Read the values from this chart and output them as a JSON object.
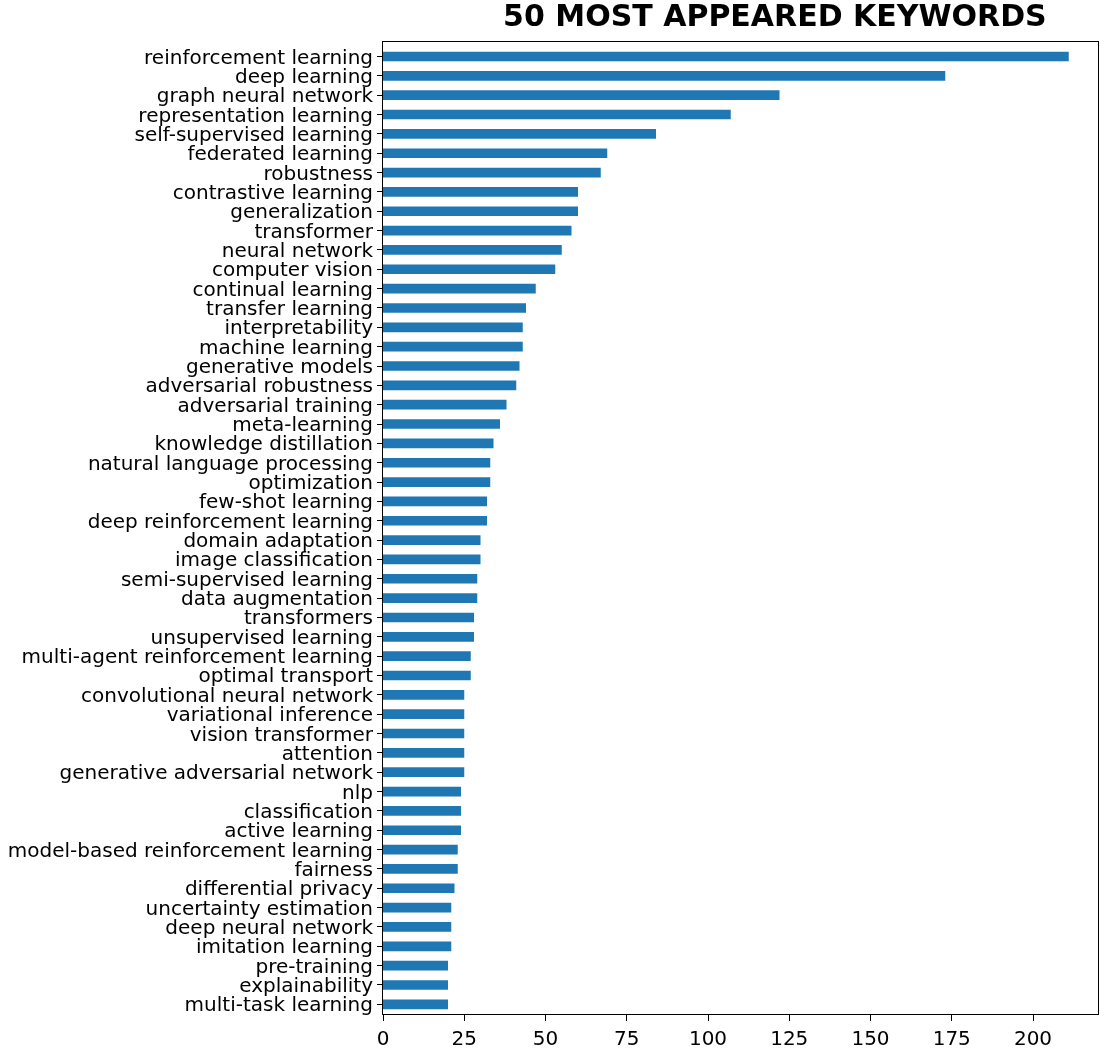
{
  "chart_data": {
    "type": "bar",
    "orientation": "horizontal",
    "title": "50 MOST APPEARED KEYWORDS",
    "color": "#1f77b4",
    "categories": [
      "reinforcement learning",
      "deep learning",
      "graph neural network",
      "representation learning",
      "self-supervised learning",
      "federated learning",
      "robustness",
      "contrastive learning",
      "generalization",
      "transformer",
      "neural network",
      "computer vision",
      "continual learning",
      "transfer learning",
      "interpretability",
      "machine learning",
      "generative models",
      "adversarial robustness",
      "adversarial training",
      "meta-learning",
      "knowledge distillation",
      "natural language processing",
      "optimization",
      "few-shot learning",
      "deep reinforcement learning",
      "domain adaptation",
      "image classification",
      "semi-supervised learning",
      "data augmentation",
      "transformers",
      "unsupervised learning",
      "multi-agent reinforcement learning",
      "optimal transport",
      "convolutional neural network",
      "variational inference",
      "vision transformer",
      "attention",
      "generative adversarial network",
      "nlp",
      "classification",
      "active learning",
      "model-based reinforcement learning",
      "fairness",
      "differential privacy",
      "uncertainty estimation",
      "deep neural network",
      "imitation learning",
      "pre-training",
      "explainability",
      "multi-task learning"
    ],
    "values": [
      211,
      173,
      122,
      107,
      84,
      69,
      67,
      60,
      60,
      58,
      55,
      53,
      47,
      44,
      43,
      43,
      42,
      41,
      38,
      36,
      34,
      33,
      33,
      32,
      32,
      30,
      30,
      29,
      29,
      28,
      28,
      27,
      27,
      25,
      25,
      25,
      25,
      25,
      24,
      24,
      24,
      23,
      23,
      22,
      21,
      21,
      21,
      20,
      20,
      20
    ],
    "xlim": [
      0,
      220
    ],
    "xticks": [
      0,
      25,
      50,
      75,
      100,
      125,
      150,
      175,
      200
    ]
  }
}
